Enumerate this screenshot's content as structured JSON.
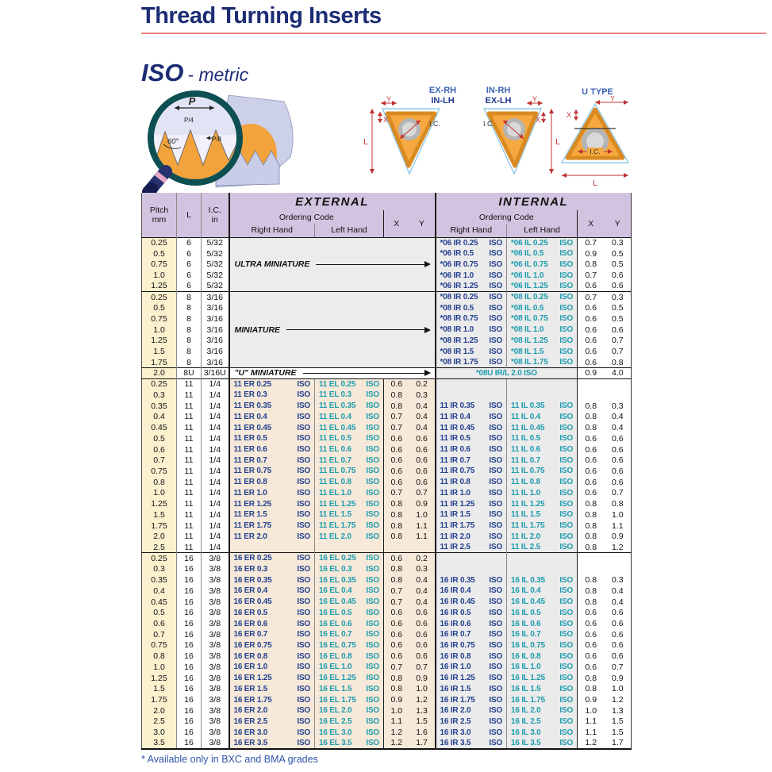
{
  "title": "Thread Turning Inserts",
  "subtitle": {
    "iso": "ISO",
    "metric": "- metric"
  },
  "profile": {
    "p": "P",
    "p4": "P/4",
    "p8": "P/8",
    "angle": "60°"
  },
  "diagram_labels": {
    "d1_line1": "EX-RH",
    "d1_line2": "IN-LH",
    "d2_line1": "IN-RH",
    "d2_line2": "EX-LH",
    "d3_title": "U TYPE",
    "dim_l": "L",
    "dim_x": "X",
    "dim_y": "Y",
    "dim_ic": "I.C."
  },
  "table": {
    "headers": {
      "pitch_line1": "Pitch",
      "pitch_line2": "mm",
      "l": "L",
      "ic_line1": "I.C.",
      "ic_line2": "in",
      "external": "EXTERNAL",
      "internal": "INTERNAL",
      "ordering_code": "Ordering Code",
      "right_hand": "Right Hand",
      "left_hand": "Left Hand",
      "x": "X",
      "y": "Y"
    },
    "sections": [
      {
        "type": "internal_only",
        "label": "ULTRA MINIATURE",
        "rows": [
          {
            "pitch": "0.25",
            "l": "6",
            "ic": "5/32",
            "int_rh": "*06 IR 0.25 ISO",
            "int_lh": "*06 IL 0.25 ISO",
            "x": "0.7",
            "y": "0.3"
          },
          {
            "pitch": "0.5",
            "l": "6",
            "ic": "5/32",
            "int_rh": "*06 IR 0.5 ISO",
            "int_lh": "*06 IL 0.5 ISO",
            "x": "0.9",
            "y": "0.5"
          },
          {
            "pitch": "0.75",
            "l": "6",
            "ic": "5/32",
            "int_rh": "*06 IR 0.75 ISO",
            "int_lh": "*06 IL 0.75 ISO",
            "x": "0.8",
            "y": "0.5"
          },
          {
            "pitch": "1.0",
            "l": "6",
            "ic": "5/32",
            "int_rh": "*06 IR 1.0 ISO",
            "int_lh": "*06 IL 1.0 ISO",
            "x": "0.7",
            "y": "0.6"
          },
          {
            "pitch": "1.25",
            "l": "6",
            "ic": "5/32",
            "int_rh": "*06 IR 1.25 ISO",
            "int_lh": "*06 IL 1.25 ISO",
            "x": "0.6",
            "y": "0.6"
          }
        ]
      },
      {
        "type": "internal_only",
        "label": "MINIATURE",
        "rows": [
          {
            "pitch": "0.25",
            "l": "8",
            "ic": "3/16",
            "int_rh": "*08 IR 0.25 ISO",
            "int_lh": "*08 IL 0.25 ISO",
            "x": "0.7",
            "y": "0.3"
          },
          {
            "pitch": "0.5",
            "l": "8",
            "ic": "3/16",
            "int_rh": "*08 IR 0.5 ISO",
            "int_lh": "*08 IL 0.5 ISO",
            "x": "0.6",
            "y": "0.5"
          },
          {
            "pitch": "0.75",
            "l": "8",
            "ic": "3/16",
            "int_rh": "*08 IR 0.75 ISO",
            "int_lh": "*08 IL 0.75 ISO",
            "x": "0.6",
            "y": "0.5"
          },
          {
            "pitch": "1.0",
            "l": "8",
            "ic": "3/16",
            "int_rh": "*08 IR 1.0 ISO",
            "int_lh": "*08 IL 1.0 ISO",
            "x": "0.6",
            "y": "0.6"
          },
          {
            "pitch": "1.25",
            "l": "8",
            "ic": "3/16",
            "int_rh": "*08 IR 1.25 ISO",
            "int_lh": "*08 IL 1.25 ISO",
            "x": "0.6",
            "y": "0.7"
          },
          {
            "pitch": "1.5",
            "l": "8",
            "ic": "3/16",
            "int_rh": "*08 IR 1.5 ISO",
            "int_lh": "*08 IL 1.5 ISO",
            "x": "0.6",
            "y": "0.7"
          },
          {
            "pitch": "1.75",
            "l": "8",
            "ic": "3/16",
            "int_rh": "*08 IR 1.75 ISO",
            "int_lh": "*08 IL 1.75 ISO",
            "x": "0.6",
            "y": "0.8"
          }
        ]
      },
      {
        "type": "u_row",
        "label": "\"U\" MINIATURE",
        "rows": [
          {
            "pitch": "2.0",
            "l": "8U",
            "ic": "3/16U",
            "code": "*08U IR/L 2.0 ISO",
            "x": "0.9",
            "y": "4.0"
          }
        ]
      },
      {
        "type": "full",
        "rows": [
          {
            "pitch": "0.25",
            "l": "11",
            "ic": "1/4",
            "ext_rh": "11 ER 0.25 ISO",
            "ext_lh": "11 EL 0.25 ISO",
            "ext_x": "0.6",
            "ext_y": "0.2",
            "int_rh": "",
            "int_lh": "",
            "int_x": "",
            "int_y": ""
          },
          {
            "pitch": "0.3",
            "l": "11",
            "ic": "1/4",
            "ext_rh": "11 ER 0.3 ISO",
            "ext_lh": "11 EL 0.3 ISO",
            "ext_x": "0.8",
            "ext_y": "0.3",
            "int_rh": "",
            "int_lh": "",
            "int_x": "",
            "int_y": ""
          },
          {
            "pitch": "0.35",
            "l": "11",
            "ic": "1/4",
            "ext_rh": "11 ER 0.35 ISO",
            "ext_lh": "11 EL 0.35 ISO",
            "ext_x": "0.8",
            "ext_y": "0.4",
            "int_rh": "11 IR 0.35 ISO",
            "int_lh": "11 IL 0.35 ISO",
            "int_x": "0.8",
            "int_y": "0.3"
          },
          {
            "pitch": "0.4",
            "l": "11",
            "ic": "1/4",
            "ext_rh": "11 ER 0.4 ISO",
            "ext_lh": "11 EL 0.4 ISO",
            "ext_x": "0.7",
            "ext_y": "0.4",
            "int_rh": "11 IR 0.4 ISO",
            "int_lh": "11 IL 0.4 ISO",
            "int_x": "0.8",
            "int_y": "0.4"
          },
          {
            "pitch": "0.45",
            "l": "11",
            "ic": "1/4",
            "ext_rh": "11 ER 0.45 ISO",
            "ext_lh": "11 EL 0.45 ISO",
            "ext_x": "0.7",
            "ext_y": "0.4",
            "int_rh": "11 IR 0.45 ISO",
            "int_lh": "11 IL 0.45 ISO",
            "int_x": "0.8",
            "int_y": "0.4"
          },
          {
            "pitch": "0.5",
            "l": "11",
            "ic": "1/4",
            "ext_rh": "11 ER 0.5 ISO",
            "ext_lh": "11 EL 0.5 ISO",
            "ext_x": "0.6",
            "ext_y": "0.6",
            "int_rh": "11 IR 0.5 ISO",
            "int_lh": "11 IL 0.5 ISO",
            "int_x": "0.6",
            "int_y": "0.6"
          },
          {
            "pitch": "0.6",
            "l": "11",
            "ic": "1/4",
            "ext_rh": "11 ER 0.6 ISO",
            "ext_lh": "11 EL 0.6 ISO",
            "ext_x": "0.6",
            "ext_y": "0.6",
            "int_rh": "11 IR 0.6 ISO",
            "int_lh": "11 IL 0.6 ISO",
            "int_x": "0.6",
            "int_y": "0.6"
          },
          {
            "pitch": "0.7",
            "l": "11",
            "ic": "1/4",
            "ext_rh": "11 ER 0.7 ISO",
            "ext_lh": "11 EL 0.7 ISO",
            "ext_x": "0.6",
            "ext_y": "0.6",
            "int_rh": "11 IR 0.7 ISO",
            "int_lh": "11 IL 0.7 ISO",
            "int_x": "0.6",
            "int_y": "0.6"
          },
          {
            "pitch": "0.75",
            "l": "11",
            "ic": "1/4",
            "ext_rh": "11 ER 0.75 ISO",
            "ext_lh": "11 EL 0.75 ISO",
            "ext_x": "0.6",
            "ext_y": "0.6",
            "int_rh": "11 IR 0.75 ISO",
            "int_lh": "11 IL 0.75 ISO",
            "int_x": "0.6",
            "int_y": "0.6"
          },
          {
            "pitch": "0.8",
            "l": "11",
            "ic": "1/4",
            "ext_rh": "11 ER 0.8 ISO",
            "ext_lh": "11 EL 0.8 ISO",
            "ext_x": "0.6",
            "ext_y": "0.6",
            "int_rh": "11 IR 0.8 ISO",
            "int_lh": "11 IL 0.8 ISO",
            "int_x": "0.6",
            "int_y": "0.6"
          },
          {
            "pitch": "1.0",
            "l": "11",
            "ic": "1/4",
            "ext_rh": "11 ER 1.0 ISO",
            "ext_lh": "11 EL 1.0 ISO",
            "ext_x": "0.7",
            "ext_y": "0.7",
            "int_rh": "11 IR 1.0 ISO",
            "int_lh": "11 IL 1.0 ISO",
            "int_x": "0.6",
            "int_y": "0.7"
          },
          {
            "pitch": "1.25",
            "l": "11",
            "ic": "1/4",
            "ext_rh": "11 ER 1.25 ISO",
            "ext_lh": "11 EL 1.25 ISO",
            "ext_x": "0.8",
            "ext_y": "0.9",
            "int_rh": "11 IR 1.25 ISO",
            "int_lh": "11 IL 1.25 ISO",
            "int_x": "0.8",
            "int_y": "0.8"
          },
          {
            "pitch": "1.5",
            "l": "11",
            "ic": "1/4",
            "ext_rh": "11 ER 1.5 ISO",
            "ext_lh": "11 EL 1.5 ISO",
            "ext_x": "0.8",
            "ext_y": "1.0",
            "int_rh": "11 IR 1.5 ISO",
            "int_lh": "11 IL 1.5 ISO",
            "int_x": "0.8",
            "int_y": "1.0"
          },
          {
            "pitch": "1.75",
            "l": "11",
            "ic": "1/4",
            "ext_rh": "11 ER 1.75 ISO",
            "ext_lh": "11 EL 1.75 ISO",
            "ext_x": "0.8",
            "ext_y": "1.1",
            "int_rh": "11 IR 1.75 ISO",
            "int_lh": "11 IL 1.75 ISO",
            "int_x": "0.8",
            "int_y": "1.1"
          },
          {
            "pitch": "2.0",
            "l": "11",
            "ic": "1/4",
            "ext_rh": "11 ER 2.0 ISO",
            "ext_lh": "11 EL 2.0 ISO",
            "ext_x": "0.8",
            "ext_y": "1.1",
            "int_rh": "11 IR 2.0 ISO",
            "int_lh": "11 IL 2.0 ISO",
            "int_x": "0.8",
            "int_y": "0.9"
          },
          {
            "pitch": "2.5",
            "l": "11",
            "ic": "1/4",
            "ext_rh": "",
            "ext_lh": "",
            "ext_x": "",
            "ext_y": "",
            "int_rh": "11 IR 2.5 ISO",
            "int_lh": "11 IL 2.5 ISO",
            "int_x": "0.8",
            "int_y": "1.2"
          }
        ]
      },
      {
        "type": "full",
        "rows": [
          {
            "pitch": "0.25",
            "l": "16",
            "ic": "3/8",
            "ext_rh": "16 ER 0.25 ISO",
            "ext_lh": "16 EL 0.25 ISO",
            "ext_x": "0.6",
            "ext_y": "0.2",
            "int_rh": "",
            "int_lh": "",
            "int_x": "",
            "int_y": ""
          },
          {
            "pitch": "0.3",
            "l": "16",
            "ic": "3/8",
            "ext_rh": "16 ER 0.3 ISO",
            "ext_lh": "16 EL 0.3 ISO",
            "ext_x": "0.8",
            "ext_y": "0.3",
            "int_rh": "",
            "int_lh": "",
            "int_x": "",
            "int_y": ""
          },
          {
            "pitch": "0.35",
            "l": "16",
            "ic": "3/8",
            "ext_rh": "16 ER 0.35 ISO",
            "ext_lh": "16 EL 0.35 ISO",
            "ext_x": "0.8",
            "ext_y": "0.4",
            "int_rh": "16 IR 0.35 ISO",
            "int_lh": "16 IL 0.35 ISO",
            "int_x": "0.8",
            "int_y": "0.3"
          },
          {
            "pitch": "0.4",
            "l": "16",
            "ic": "3/8",
            "ext_rh": "16 ER 0.4 ISO",
            "ext_lh": "16 EL 0.4 ISO",
            "ext_x": "0.7",
            "ext_y": "0.4",
            "int_rh": "16 IR 0.4 ISO",
            "int_lh": "16 IL 0.4 ISO",
            "int_x": "0.8",
            "int_y": "0.4"
          },
          {
            "pitch": "0.45",
            "l": "16",
            "ic": "3/8",
            "ext_rh": "16 ER 0.45 ISO",
            "ext_lh": "16 EL 0.45 ISO",
            "ext_x": "0.7",
            "ext_y": "0.4",
            "int_rh": "16 IR 0.45 ISO",
            "int_lh": "16 IL 0.45 ISO",
            "int_x": "0.8",
            "int_y": "0.4"
          },
          {
            "pitch": "0.5",
            "l": "16",
            "ic": "3/8",
            "ext_rh": "16 ER 0.5 ISO",
            "ext_lh": "16 EL 0.5 ISO",
            "ext_x": "0.6",
            "ext_y": "0.6",
            "int_rh": "16 IR 0.5 ISO",
            "int_lh": "16 IL 0.5 ISO",
            "int_x": "0.6",
            "int_y": "0.6"
          },
          {
            "pitch": "0.6",
            "l": "16",
            "ic": "3/8",
            "ext_rh": "16 ER 0.6 ISO",
            "ext_lh": "16 EL 0.6 ISO",
            "ext_x": "0.6",
            "ext_y": "0.6",
            "int_rh": "16 IR 0.6 ISO",
            "int_lh": "16 IL 0.6 ISO",
            "int_x": "0.6",
            "int_y": "0.6"
          },
          {
            "pitch": "0.7",
            "l": "16",
            "ic": "3/8",
            "ext_rh": "16 ER 0.7 ISO",
            "ext_lh": "16 EL 0.7 ISO",
            "ext_x": "0.6",
            "ext_y": "0.6",
            "int_rh": "16 IR 0.7 ISO",
            "int_lh": "16 IL 0.7 ISO",
            "int_x": "0.6",
            "int_y": "0.6"
          },
          {
            "pitch": "0.75",
            "l": "16",
            "ic": "3/8",
            "ext_rh": "16 ER 0.75 ISO",
            "ext_lh": "16 EL 0.75 ISO",
            "ext_x": "0.6",
            "ext_y": "0.6",
            "int_rh": "16 IR 0.75 ISO",
            "int_lh": "16 IL 0.75 ISO",
            "int_x": "0.6",
            "int_y": "0.6"
          },
          {
            "pitch": "0.8",
            "l": "16",
            "ic": "3/8",
            "ext_rh": "16 ER 0.8 ISO",
            "ext_lh": "16 EL 0.8 ISO",
            "ext_x": "0.6",
            "ext_y": "0.6",
            "int_rh": "16 IR 0.8 ISO",
            "int_lh": "16 IL 0.8 ISO",
            "int_x": "0.6",
            "int_y": "0.6"
          },
          {
            "pitch": "1.0",
            "l": "16",
            "ic": "3/8",
            "ext_rh": "16 ER 1.0 ISO",
            "ext_lh": "16 EL 1.0 ISO",
            "ext_x": "0.7",
            "ext_y": "0.7",
            "int_rh": "16 IR 1.0 ISO",
            "int_lh": "16 IL 1.0 ISO",
            "int_x": "0.6",
            "int_y": "0.7"
          },
          {
            "pitch": "1.25",
            "l": "16",
            "ic": "3/8",
            "ext_rh": "16 ER 1.25 ISO",
            "ext_lh": "16 EL 1.25 ISO",
            "ext_x": "0.8",
            "ext_y": "0.9",
            "int_rh": "16 IR 1.25 ISO",
            "int_lh": "16 IL 1.25 ISO",
            "int_x": "0.8",
            "int_y": "0.9"
          },
          {
            "pitch": "1.5",
            "l": "16",
            "ic": "3/8",
            "ext_rh": "16 ER 1.5 ISO",
            "ext_lh": "16 EL 1.5 ISO",
            "ext_x": "0.8",
            "ext_y": "1.0",
            "int_rh": "16 IR 1.5 ISO",
            "int_lh": "16 IL 1.5 ISO",
            "int_x": "0.8",
            "int_y": "1.0"
          },
          {
            "pitch": "1.75",
            "l": "16",
            "ic": "3/8",
            "ext_rh": "16 ER 1.75 ISO",
            "ext_lh": "16 EL 1.75 ISO",
            "ext_x": "0.9",
            "ext_y": "1.2",
            "int_rh": "16 IR 1.75 ISO",
            "int_lh": "16 IL 1.75 ISO",
            "int_x": "0.9",
            "int_y": "1.2"
          },
          {
            "pitch": "2.0",
            "l": "16",
            "ic": "3/8",
            "ext_rh": "16 ER 2.0 ISO",
            "ext_lh": "16 EL 2.0 ISO",
            "ext_x": "1.0",
            "ext_y": "1.3",
            "int_rh": "16 IR 2.0 ISO",
            "int_lh": "16 IL 2.0 ISO",
            "int_x": "1.0",
            "int_y": "1.3"
          },
          {
            "pitch": "2.5",
            "l": "16",
            "ic": "3/8",
            "ext_rh": "16 ER 2.5 ISO",
            "ext_lh": "16 EL 2.5 ISO",
            "ext_x": "1.1",
            "ext_y": "1.5",
            "int_rh": "16 IR 2.5 ISO",
            "int_lh": "16 IL 2.5 ISO",
            "int_x": "1.1",
            "int_y": "1.5"
          },
          {
            "pitch": "3.0",
            "l": "16",
            "ic": "3/8",
            "ext_rh": "16 ER 3.0 ISO",
            "ext_lh": "16 EL 3.0 ISO",
            "ext_x": "1.2",
            "ext_y": "1.6",
            "int_rh": "16 IR 3.0 ISO",
            "int_lh": "16 IL 3.0 ISO",
            "int_x": "1.1",
            "int_y": "1.5"
          },
          {
            "pitch": "3.5",
            "l": "16",
            "ic": "3/8",
            "ext_rh": "16 ER 3.5 ISO",
            "ext_lh": "16 EL 3.5 ISO",
            "ext_x": "1.2",
            "ext_y": "1.7",
            "int_rh": "16 IR 3.5 ISO",
            "int_lh": "16 IL 3.5 ISO",
            "int_x": "1.2",
            "int_y": "1.7"
          }
        ]
      }
    ]
  },
  "footnote": "* Available only in BXC and BMA grades"
}
